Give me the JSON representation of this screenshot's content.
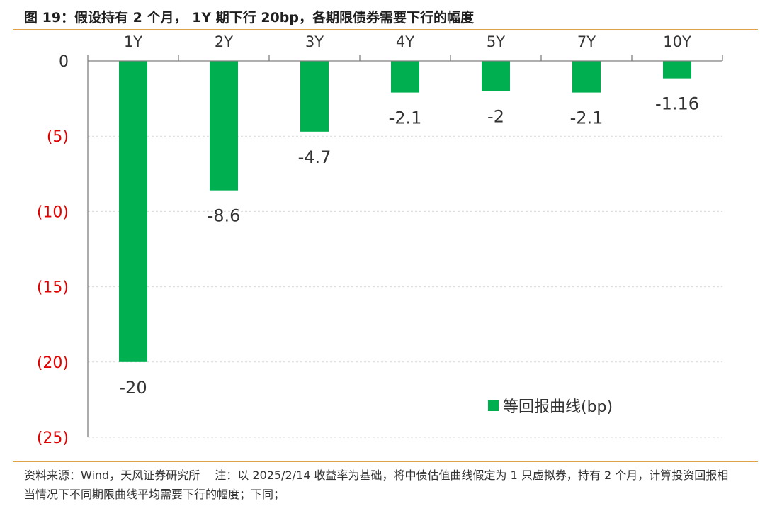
{
  "title": "图 19：假设持有 2 个月， 1Y 期下行 20bp，各期限债券需要下行的幅度",
  "source_note": "资料来源：Wind，天风证券研究所　 注：以 2025/2/14 收益率为基础，将中债估值曲线假定为 1 只虚拟券，持有 2 个月，计算投资回报相当情况下不同期限曲线平均需要下行的幅度；下同；",
  "colors": {
    "bar": "#00b050",
    "negative_tick": "#e00000",
    "axis": "#7f7f7f",
    "grid": "#d9d9d9",
    "rule": "#e2a24a"
  },
  "chart_data": {
    "type": "bar",
    "categories": [
      "1Y",
      "2Y",
      "3Y",
      "4Y",
      "5Y",
      "7Y",
      "10Y"
    ],
    "series": [
      {
        "name": "等回报曲线(bp)",
        "values": [
          -20,
          -8.6,
          -4.7,
          -2.1,
          -2,
          -2.1,
          -1.16
        ]
      }
    ],
    "data_labels": [
      "-20",
      "-8.6",
      "-4.7",
      "-2.1",
      "-2",
      "-2.1",
      "-1.16"
    ],
    "y_ticks": [
      0,
      -5,
      -10,
      -15,
      -20,
      -25
    ],
    "y_tick_labels": [
      "0",
      "(5)",
      "(10)",
      "(15)",
      "(20)",
      "(25)"
    ],
    "ylim": [
      -25,
      0
    ],
    "x_axis_position": "top",
    "grid": true,
    "legend": "bottom-right"
  }
}
